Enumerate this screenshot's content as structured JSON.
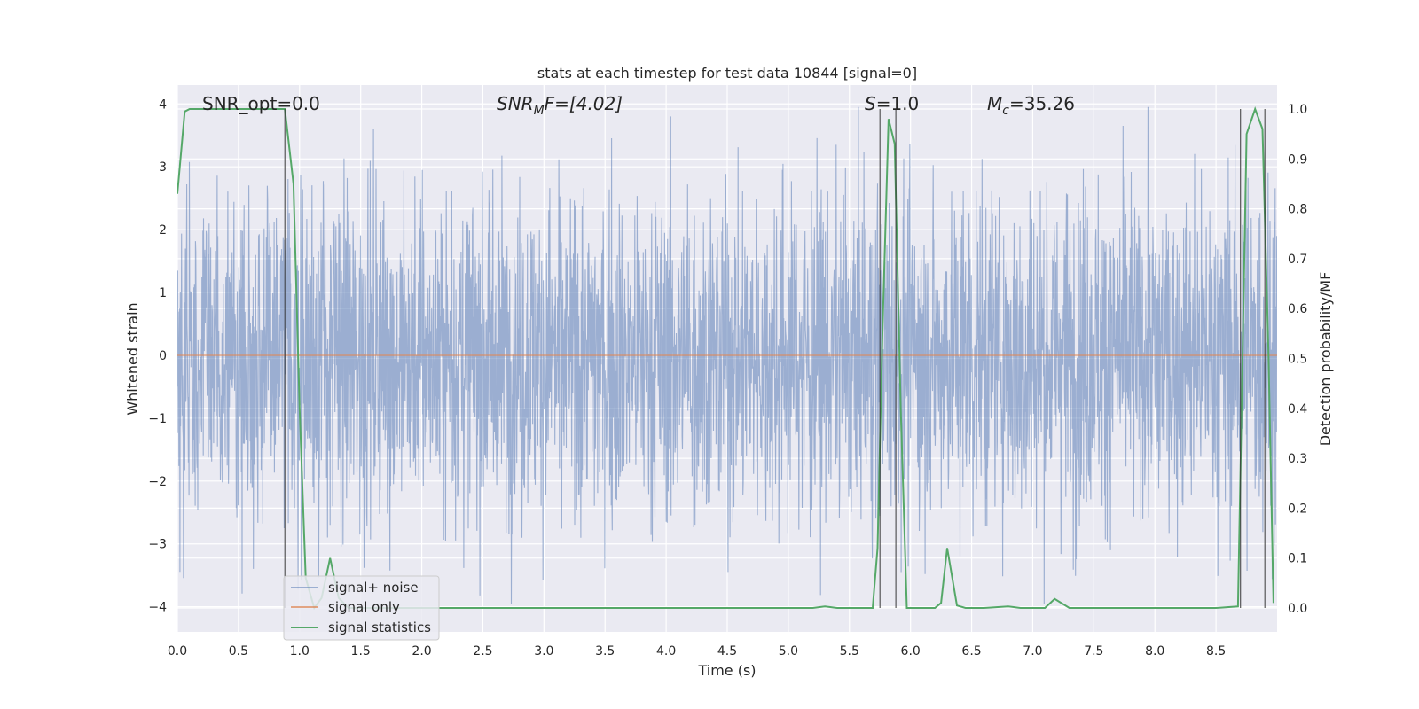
{
  "chart_data": {
    "type": "line",
    "title": "stats at each timestep for test data 10844 [signal=0]",
    "xlabel": "Time (s)",
    "ylabel": "Whitened strain",
    "y2label": "Detection probability/MF",
    "xlim": [
      0.0,
      9.0
    ],
    "ylim": [
      -4.4,
      4.3
    ],
    "y2lim": [
      -0.048,
      1.048
    ],
    "xticks": [
      "0.0",
      "0.5",
      "1.0",
      "1.5",
      "2.0",
      "2.5",
      "3.0",
      "3.5",
      "4.0",
      "4.5",
      "5.0",
      "5.5",
      "6.0",
      "6.5",
      "7.0",
      "7.5",
      "8.0",
      "8.5"
    ],
    "xtick_values": [
      0.0,
      0.5,
      1.0,
      1.5,
      2.0,
      2.5,
      3.0,
      3.5,
      4.0,
      4.5,
      5.0,
      5.5,
      6.0,
      6.5,
      7.0,
      7.5,
      8.0,
      8.5
    ],
    "yticks": [
      "−4",
      "−3",
      "−2",
      "−1",
      "0",
      "1",
      "2",
      "3",
      "4"
    ],
    "ytick_values": [
      -4,
      -3,
      -2,
      -1,
      0,
      1,
      2,
      3,
      4
    ],
    "y2ticks": [
      "0.0",
      "0.1",
      "0.2",
      "0.3",
      "0.4",
      "0.5",
      "0.6",
      "0.7",
      "0.8",
      "0.9",
      "1.0"
    ],
    "y2tick_values": [
      0.0,
      0.1,
      0.2,
      0.3,
      0.4,
      0.5,
      0.6,
      0.7,
      0.8,
      0.9,
      1.0
    ],
    "grid": true,
    "legend_position": "lower-left",
    "annotations": {
      "snr_opt": "SNR_opt=0.0",
      "snr_mf_main": "SNR",
      "snr_mf_sub": "M",
      "snr_mf_rest": "F=[4.02]",
      "s_main": "S",
      "s_rest": "=1.0",
      "mc_main": "M",
      "mc_sub": "c",
      "mc_rest": "=35.26"
    },
    "series": [
      {
        "name": "signal+ noise",
        "color": "#4c72b0",
        "description_level": "noisy strain, approx. range [-3.5, 4.0]",
        "noise_amplitude": 1.55
      },
      {
        "name": "signal only",
        "color": "#dd8452",
        "x": [
          0.0,
          9.0
        ],
        "y": [
          0.0,
          0.0
        ]
      },
      {
        "name": "signal statistics",
        "color": "#55a868",
        "axis": "right",
        "x": [
          0.0,
          0.06,
          0.1,
          0.15,
          0.2,
          0.3,
          0.4,
          0.5,
          0.6,
          0.7,
          0.8,
          0.88,
          0.95,
          1.0,
          1.05,
          1.12,
          1.18,
          1.25,
          1.32,
          1.4,
          2.0,
          3.0,
          4.0,
          5.0,
          5.2,
          5.3,
          5.4,
          5.5,
          5.6,
          5.65,
          5.69,
          5.73,
          5.77,
          5.82,
          5.87,
          5.92,
          5.97,
          6.05,
          6.2,
          6.25,
          6.3,
          6.38,
          6.45,
          6.6,
          6.8,
          6.9,
          7.0,
          7.1,
          7.18,
          7.3,
          7.4,
          8.0,
          8.5,
          8.68,
          8.75,
          8.82,
          8.88,
          8.93,
          8.97
        ],
        "y": [
          0.83,
          0.995,
          1.0,
          1.0,
          1.0,
          1.0,
          1.0,
          1.0,
          1.0,
          1.0,
          1.0,
          1.0,
          0.85,
          0.4,
          0.06,
          0.0,
          0.02,
          0.1,
          0.02,
          0.0,
          0.0,
          0.0,
          0.0,
          0.0,
          0.0,
          0.003,
          0.0,
          0.0,
          0.0,
          0.0,
          0.0,
          0.12,
          0.55,
          0.98,
          0.93,
          0.4,
          0.0,
          0.0,
          0.0,
          0.01,
          0.12,
          0.005,
          0.0,
          0.0,
          0.003,
          0.0,
          0.0,
          0.0,
          0.018,
          0.0,
          0.0,
          0.0,
          0.0,
          0.003,
          0.95,
          1.0,
          0.96,
          0.5,
          0.01
        ]
      }
    ],
    "event_markers_x": [
      0.88,
      5.75,
      5.88,
      8.7,
      8.9
    ]
  }
}
